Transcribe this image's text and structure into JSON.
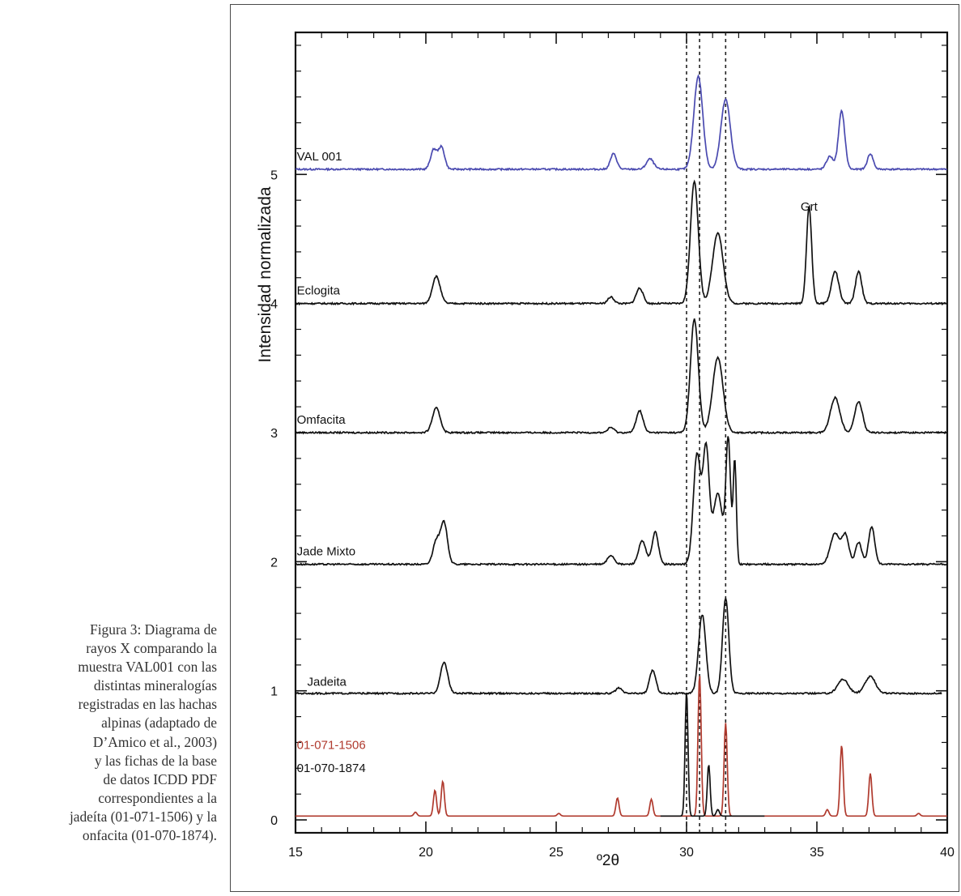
{
  "caption": {
    "lines": [
      "Figura 3: Diagrama de",
      "rayos X comparando la",
      "muestra VAL001 con las",
      "distintas mineralogías",
      "registradas en las hachas",
      "alpinas (adaptado de",
      "D’Amico et al., 2003)",
      "y las fichas de la base",
      "de datos ICDD PDF",
      "correspondientes a la",
      "jadeíta (01-071-1506) y la",
      "onfacita (01-070-1874)."
    ]
  },
  "chart_data": {
    "type": "line",
    "title": "",
    "xlabel": "º2θ",
    "ylabel": "Intensidad normalizada",
    "xlim": [
      15,
      40
    ],
    "ylim": [
      -0.1,
      6.1
    ],
    "xticks": [
      15,
      20,
      25,
      30,
      35,
      40
    ],
    "yticks": [
      0,
      1,
      2,
      3,
      4,
      5
    ],
    "reference_lines_x": [
      30.0,
      30.5,
      31.5
    ],
    "annotations": [
      {
        "text": "Grt",
        "x": 34.7,
        "y": 4.72
      }
    ],
    "colors": {
      "val001": "#4a4ab0",
      "black": "#111111",
      "jadeite_ref": "#b03a2e"
    },
    "series": [
      {
        "name": "VAL 001",
        "color_key": "val001",
        "baseline": 5.04,
        "xmin": 15,
        "xmax": 40,
        "peaks": [
          [
            20.3,
            0.15,
            0.12
          ],
          [
            20.6,
            0.17,
            0.12
          ],
          [
            27.2,
            0.12,
            0.12
          ],
          [
            28.6,
            0.08,
            0.14
          ],
          [
            30.45,
            0.72,
            0.17
          ],
          [
            31.5,
            0.54,
            0.18
          ],
          [
            35.5,
            0.1,
            0.13
          ],
          [
            35.95,
            0.45,
            0.12
          ],
          [
            37.05,
            0.12,
            0.11
          ]
        ]
      },
      {
        "name": "Eclogita",
        "color_key": "black",
        "baseline": 4.0,
        "xmin": 15,
        "xmax": 40,
        "peaks": [
          [
            20.4,
            0.21,
            0.15
          ],
          [
            27.1,
            0.05,
            0.12
          ],
          [
            28.2,
            0.12,
            0.13
          ],
          [
            30.3,
            0.95,
            0.15
          ],
          [
            31.2,
            0.55,
            0.2
          ],
          [
            34.7,
            0.75,
            0.1
          ],
          [
            35.7,
            0.25,
            0.14
          ],
          [
            36.6,
            0.25,
            0.12
          ]
        ]
      },
      {
        "name": "Omfacita",
        "color_key": "black",
        "baseline": 3.0,
        "xmin": 15,
        "xmax": 40,
        "peaks": [
          [
            20.4,
            0.19,
            0.15
          ],
          [
            27.1,
            0.04,
            0.12
          ],
          [
            28.2,
            0.17,
            0.13
          ],
          [
            30.3,
            0.88,
            0.15
          ],
          [
            31.2,
            0.58,
            0.2
          ],
          [
            35.7,
            0.27,
            0.18
          ],
          [
            36.6,
            0.24,
            0.15
          ]
        ]
      },
      {
        "name": "Jade Mixto",
        "color_key": "black",
        "baseline": 1.98,
        "xmin": 15,
        "xmax": 40,
        "peaks": [
          [
            20.4,
            0.18,
            0.13
          ],
          [
            20.7,
            0.32,
            0.13
          ],
          [
            27.1,
            0.07,
            0.13
          ],
          [
            28.3,
            0.18,
            0.14
          ],
          [
            28.8,
            0.25,
            0.12
          ],
          [
            30.4,
            0.85,
            0.14
          ],
          [
            30.75,
            0.88,
            0.12
          ],
          [
            31.2,
            0.55,
            0.18
          ],
          [
            31.6,
            0.95,
            0.09
          ],
          [
            31.85,
            0.8,
            0.06
          ],
          [
            35.7,
            0.24,
            0.18
          ],
          [
            36.1,
            0.22,
            0.13
          ],
          [
            36.6,
            0.17,
            0.12
          ],
          [
            37.1,
            0.29,
            0.12
          ]
        ]
      },
      {
        "name": "Jadeita",
        "color_key": "black",
        "baseline": 0.98,
        "xmin": 15,
        "xmax": 39.8,
        "peaks": [
          [
            20.7,
            0.24,
            0.14
          ],
          [
            27.4,
            0.04,
            0.12
          ],
          [
            28.7,
            0.18,
            0.12
          ],
          [
            30.6,
            0.61,
            0.14
          ],
          [
            31.5,
            0.74,
            0.12
          ],
          [
            36.0,
            0.11,
            0.2
          ],
          [
            37.05,
            0.13,
            0.2
          ]
        ]
      },
      {
        "name": "01-071-1506",
        "color_key": "jadeite_ref",
        "baseline": 0.03,
        "xmin": 15,
        "xmax": 40,
        "peaks": [
          [
            19.6,
            0.03,
            0.06
          ],
          [
            20.35,
            0.2,
            0.06
          ],
          [
            20.65,
            0.27,
            0.06
          ],
          [
            25.1,
            0.02,
            0.06
          ],
          [
            27.35,
            0.14,
            0.06
          ],
          [
            28.65,
            0.13,
            0.06
          ],
          [
            30.5,
            1.1,
            0.06
          ],
          [
            31.5,
            0.72,
            0.06
          ],
          [
            35.4,
            0.05,
            0.06
          ],
          [
            35.95,
            0.55,
            0.06
          ],
          [
            37.05,
            0.33,
            0.06
          ],
          [
            38.9,
            0.02,
            0.06
          ]
        ]
      },
      {
        "name": "01-070-1874",
        "color_key": "black",
        "baseline": 0.03,
        "xmin": 29.0,
        "xmax": 33.0,
        "peaks": [
          [
            30.0,
            0.97,
            0.055
          ],
          [
            30.85,
            0.4,
            0.055
          ],
          [
            31.2,
            0.05,
            0.06
          ]
        ]
      }
    ]
  }
}
